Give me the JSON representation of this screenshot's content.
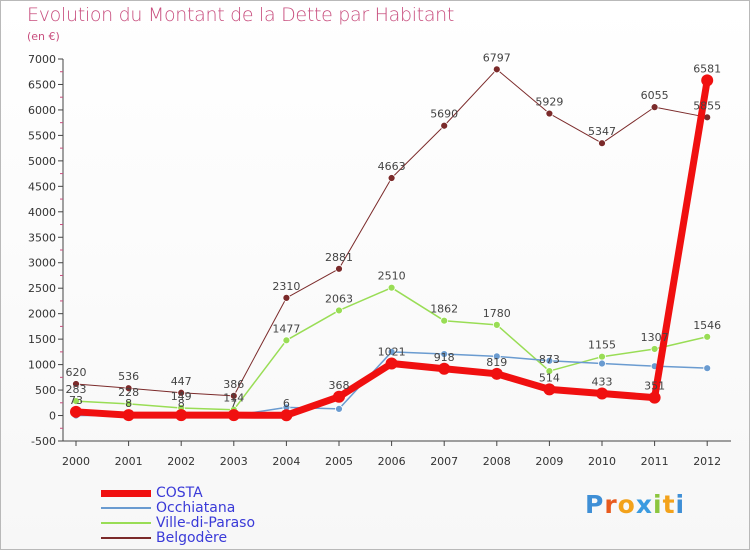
{
  "title": "Evolution du Montant de la Dette par Habitant",
  "unit_label": "(en €)",
  "logo": {
    "text": "Proxiti",
    "letters": [
      {
        "ch": "P",
        "color": "#3f8fd6"
      },
      {
        "ch": "r",
        "color": "#e85a1e"
      },
      {
        "ch": "o",
        "color": "#f3a21b"
      },
      {
        "ch": "x",
        "color": "#3b9be0"
      },
      {
        "ch": "i",
        "color": "#8cc63f"
      },
      {
        "ch": "t",
        "color": "#f3a21b"
      },
      {
        "ch": "i",
        "color": "#3f8fd6"
      }
    ]
  },
  "chart_data": {
    "type": "line",
    "title": "Evolution du Montant de la Dette par Habitant",
    "ylabel": "(en €)",
    "xlabel": "",
    "x": [
      "2000",
      "2001",
      "2002",
      "2003",
      "2004",
      "2005",
      "2006",
      "2007",
      "2008",
      "2009",
      "2010",
      "2011",
      "2012"
    ],
    "ylim": [
      -500,
      7000
    ],
    "yticks": [
      -500,
      0,
      500,
      1000,
      1500,
      2000,
      2500,
      3000,
      3500,
      4000,
      4500,
      5000,
      5500,
      6000,
      6500,
      7000
    ],
    "grid": false,
    "legend_position": "bottom-left",
    "series": [
      {
        "name": "COSTA",
        "color": "#f01010",
        "width": 7,
        "marker": 6,
        "labels": true,
        "values": [
          73,
          8,
          8,
          7,
          6,
          368,
          1021,
          918,
          819,
          514,
          433,
          351,
          6581
        ]
      },
      {
        "name": "Occhiatana",
        "color": "#6a9bd0",
        "width": 1.5,
        "marker": 3.5,
        "labels": false,
        "values": [
          0,
          0,
          0,
          0,
          160,
          130,
          1250,
          1207,
          1162,
          1075,
          1021,
          969,
          930
        ]
      },
      {
        "name": "Ville-di-Paraso",
        "color": "#99dd55",
        "width": 1.5,
        "marker": 3.5,
        "labels": true,
        "values": [
          283,
          228,
          149,
          114,
          1477,
          2063,
          2510,
          1862,
          1780,
          873,
          1155,
          1307,
          1546
        ]
      },
      {
        "name": "Belgodère",
        "color": "#7b2a2a",
        "width": 1,
        "marker": 3.5,
        "labels": true,
        "values": [
          620,
          536,
          447,
          386,
          2310,
          2881,
          4663,
          5690,
          6797,
          5929,
          5347,
          6055,
          5855
        ]
      }
    ]
  }
}
